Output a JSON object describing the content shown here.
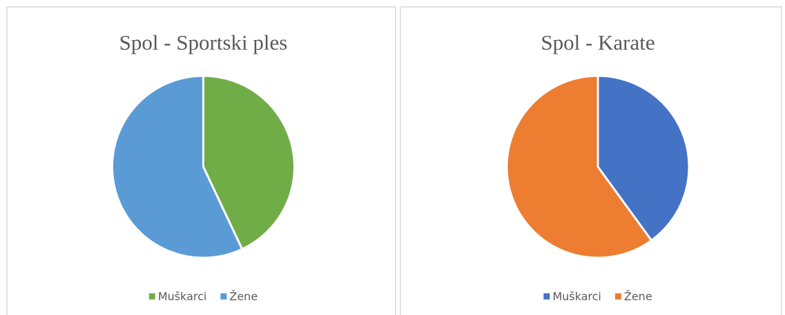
{
  "chart_data": [
    {
      "type": "pie",
      "title": "Spol - Sportski ples",
      "categories": [
        "Muškarci",
        "Žene"
      ],
      "values": [
        43,
        57
      ],
      "colors": [
        "#70ad47",
        "#5b9bd5"
      ],
      "legend": "bottom"
    },
    {
      "type": "pie",
      "title": "Spol - Karate",
      "categories": [
        "Muškarci",
        "Žene"
      ],
      "values": [
        40,
        60
      ],
      "colors": [
        "#4472c4",
        "#ed7d31"
      ],
      "legend": "bottom"
    }
  ]
}
